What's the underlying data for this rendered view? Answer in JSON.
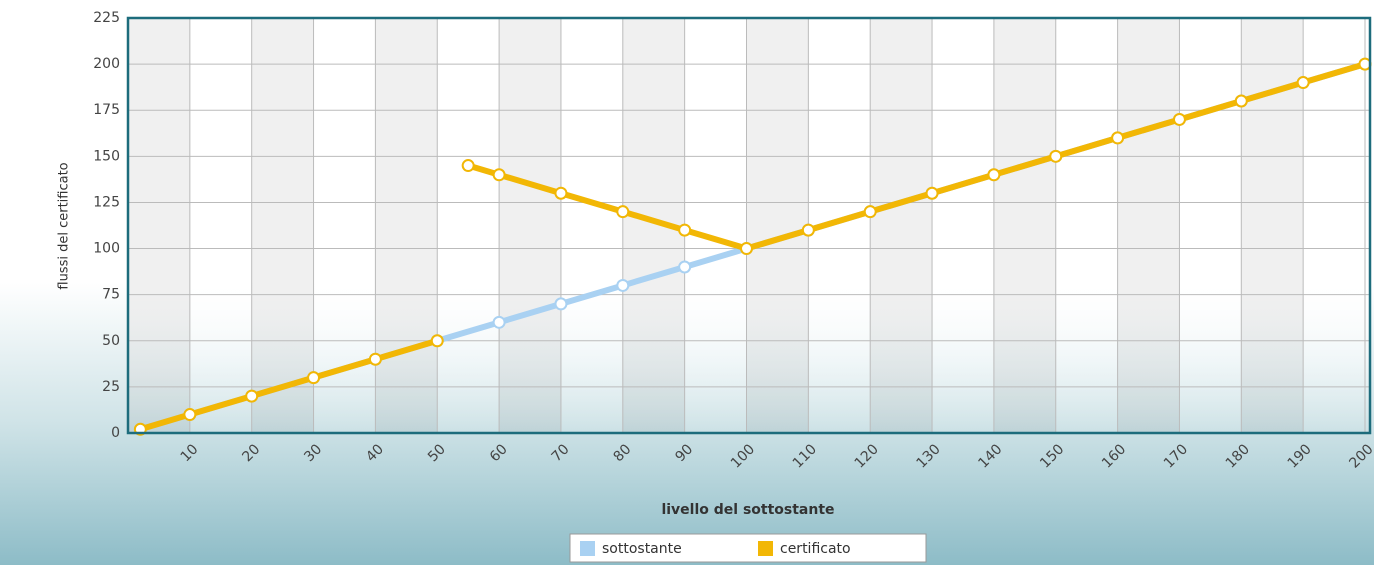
{
  "chart_data": {
    "type": "line",
    "x_label": "livello del sottostante",
    "y_label": "flussi del certificato",
    "xlim": [
      0,
      200
    ],
    "xticks": [
      10,
      20,
      30,
      40,
      50,
      60,
      70,
      80,
      90,
      100,
      110,
      120,
      130,
      140,
      150,
      160,
      170,
      180,
      190,
      200
    ],
    "ylim": [
      0,
      225
    ],
    "yticks": [
      0,
      25,
      50,
      75,
      100,
      125,
      150,
      175,
      200,
      225
    ],
    "grid": true,
    "legend": "bottom",
    "series": [
      {
        "name": "sottostante",
        "color": "#a9d1f2",
        "x": [
          2,
          10,
          20,
          30,
          40,
          50,
          60,
          70,
          80,
          90,
          100,
          110,
          120,
          130,
          140,
          150,
          160,
          170,
          180,
          190,
          200
        ],
        "values": [
          2,
          10,
          20,
          30,
          40,
          50,
          60,
          70,
          80,
          90,
          100,
          110,
          120,
          130,
          140,
          150,
          160,
          170,
          180,
          190,
          200
        ]
      },
      {
        "name": "certificato",
        "color": "#f2b705",
        "x": [
          2,
          10,
          20,
          30,
          40,
          50,
          null,
          55,
          60,
          70,
          80,
          90,
          100,
          110,
          120,
          130,
          140,
          150,
          160,
          170,
          180,
          190,
          200
        ],
        "values": [
          2,
          10,
          20,
          30,
          40,
          50,
          null,
          145,
          140,
          130,
          120,
          110,
          100,
          110,
          120,
          130,
          140,
          150,
          160,
          170,
          180,
          190,
          200
        ]
      }
    ]
  }
}
